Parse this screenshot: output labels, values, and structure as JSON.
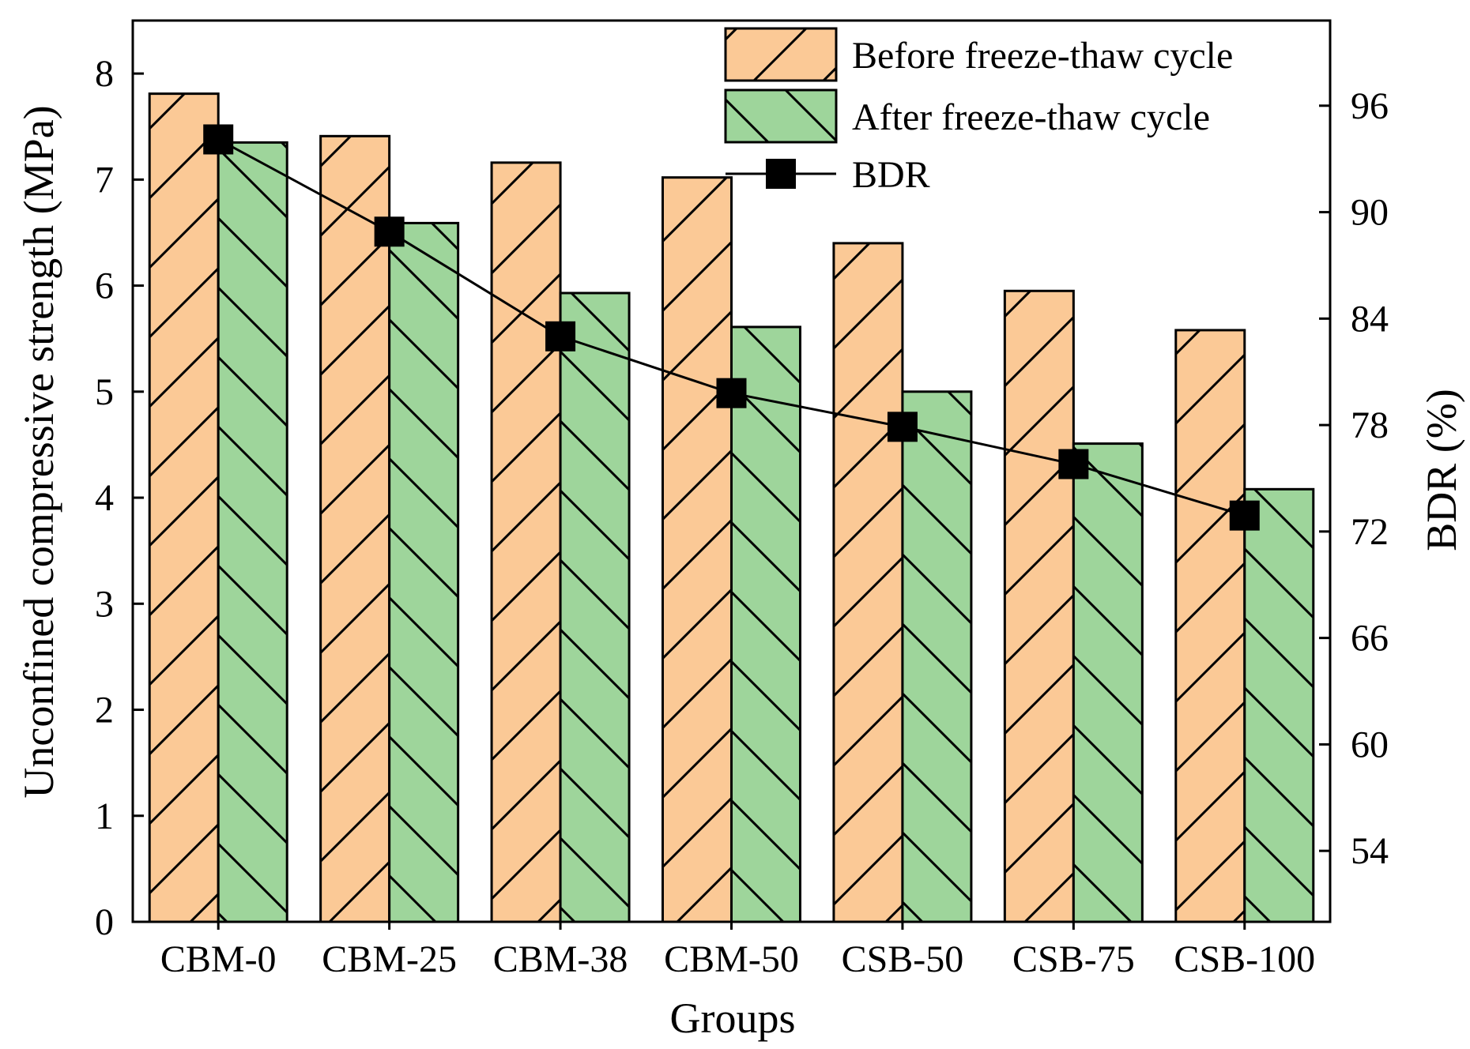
{
  "chart_data": {
    "type": "bar",
    "title": "",
    "xlabel": "Groups",
    "ylabel": "Unconfined compressive strength (MPa)",
    "ylabel_right": "BDR (%)",
    "categories": [
      "CBM-0",
      "CBM-25",
      "CBM-38",
      "CBM-50",
      "CSB-50",
      "CSB-75",
      "CSB-100"
    ],
    "series": [
      {
        "name": "Before freeze-thaw cycle",
        "kind": "bar",
        "axis": "left",
        "color": "#fbc996",
        "hatch": "forward-diagonal",
        "values": [
          7.81,
          7.41,
          7.16,
          7.02,
          6.4,
          5.95,
          5.58
        ]
      },
      {
        "name": "After freeze-thaw cycle",
        "kind": "bar",
        "axis": "left",
        "color": "#9ed59b",
        "hatch": "backward-diagonal",
        "values": [
          7.35,
          6.59,
          5.93,
          5.61,
          5.0,
          4.51,
          4.08
        ]
      },
      {
        "name": "BDR",
        "kind": "line",
        "axis": "right",
        "color": "#000000",
        "marker": "square",
        "values": [
          94.1,
          88.9,
          83.0,
          79.8,
          77.9,
          75.8,
          72.9
        ]
      }
    ],
    "ylim": [
      0,
      8.5
    ],
    "yticks": [
      0,
      1,
      2,
      3,
      4,
      5,
      6,
      7,
      8
    ],
    "ylim_right": [
      50,
      100.8
    ],
    "yticks_right": [
      54,
      60,
      66,
      72,
      78,
      84,
      90,
      96
    ],
    "grid": false,
    "legend_position": "top-right"
  }
}
